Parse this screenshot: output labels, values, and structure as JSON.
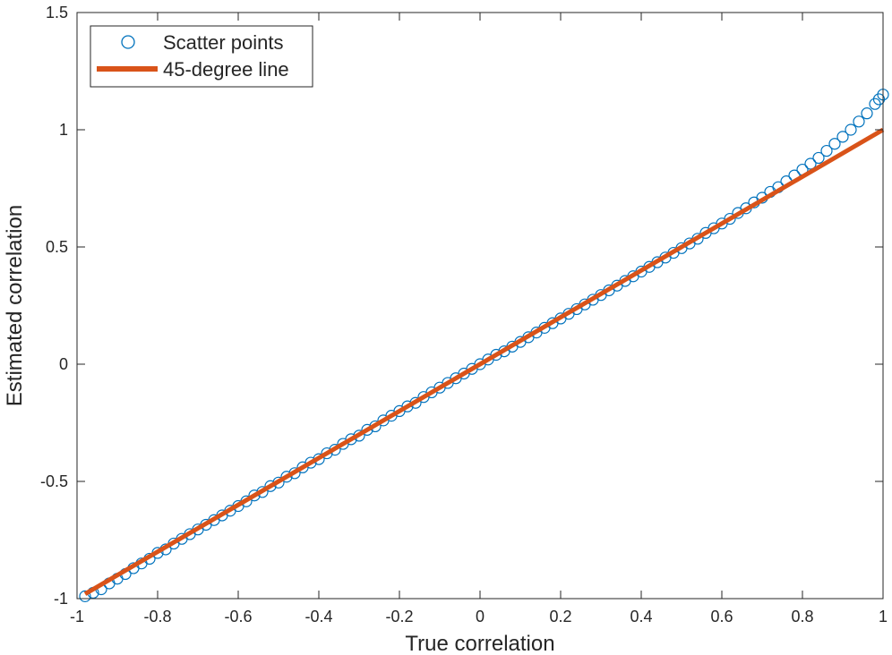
{
  "chart_data": {
    "type": "scatter",
    "xlabel": "True correlation",
    "ylabel": "Estimated correlation",
    "xlim": [
      -1,
      1
    ],
    "ylim": [
      -1,
      1.5
    ],
    "x_ticks": [
      "-1",
      "-0.8",
      "-0.6",
      "-0.4",
      "-0.2",
      "0",
      "0.2",
      "0.4",
      "0.6",
      "0.8",
      "1"
    ],
    "y_ticks": [
      "-1",
      "-0.5",
      "0",
      "0.5",
      "1",
      "1.5"
    ],
    "grid": false,
    "legend_position": "top-left",
    "series": [
      {
        "name": "Scatter points",
        "marker": "circle-open",
        "color": "#0072bd",
        "points": [
          [
            -0.98,
            -0.99
          ],
          [
            -0.96,
            -0.975
          ],
          [
            -0.94,
            -0.96
          ],
          [
            -0.92,
            -0.935
          ],
          [
            -0.9,
            -0.915
          ],
          [
            -0.88,
            -0.895
          ],
          [
            -0.86,
            -0.87
          ],
          [
            -0.84,
            -0.85
          ],
          [
            -0.82,
            -0.83
          ],
          [
            -0.8,
            -0.805
          ],
          [
            -0.78,
            -0.79
          ],
          [
            -0.76,
            -0.765
          ],
          [
            -0.74,
            -0.745
          ],
          [
            -0.72,
            -0.725
          ],
          [
            -0.7,
            -0.705
          ],
          [
            -0.68,
            -0.685
          ],
          [
            -0.66,
            -0.665
          ],
          [
            -0.64,
            -0.645
          ],
          [
            -0.62,
            -0.625
          ],
          [
            -0.6,
            -0.605
          ],
          [
            -0.58,
            -0.585
          ],
          [
            -0.56,
            -0.56
          ],
          [
            -0.54,
            -0.545
          ],
          [
            -0.52,
            -0.52
          ],
          [
            -0.5,
            -0.505
          ],
          [
            -0.48,
            -0.48
          ],
          [
            -0.46,
            -0.465
          ],
          [
            -0.44,
            -0.44
          ],
          [
            -0.42,
            -0.42
          ],
          [
            -0.4,
            -0.405
          ],
          [
            -0.38,
            -0.38
          ],
          [
            -0.36,
            -0.365
          ],
          [
            -0.34,
            -0.34
          ],
          [
            -0.32,
            -0.32
          ],
          [
            -0.3,
            -0.305
          ],
          [
            -0.28,
            -0.28
          ],
          [
            -0.26,
            -0.265
          ],
          [
            -0.24,
            -0.24
          ],
          [
            -0.22,
            -0.22
          ],
          [
            -0.2,
            -0.2
          ],
          [
            -0.18,
            -0.18
          ],
          [
            -0.16,
            -0.165
          ],
          [
            -0.14,
            -0.14
          ],
          [
            -0.12,
            -0.12
          ],
          [
            -0.1,
            -0.1
          ],
          [
            -0.08,
            -0.08
          ],
          [
            -0.06,
            -0.06
          ],
          [
            -0.04,
            -0.04
          ],
          [
            -0.02,
            -0.02
          ],
          [
            0.0,
            0.0
          ],
          [
            0.02,
            0.02
          ],
          [
            0.04,
            0.04
          ],
          [
            0.06,
            0.055
          ],
          [
            0.08,
            0.075
          ],
          [
            0.1,
            0.095
          ],
          [
            0.12,
            0.115
          ],
          [
            0.14,
            0.135
          ],
          [
            0.16,
            0.155
          ],
          [
            0.18,
            0.175
          ],
          [
            0.2,
            0.195
          ],
          [
            0.22,
            0.215
          ],
          [
            0.24,
            0.235
          ],
          [
            0.26,
            0.255
          ],
          [
            0.28,
            0.275
          ],
          [
            0.3,
            0.295
          ],
          [
            0.32,
            0.315
          ],
          [
            0.34,
            0.335
          ],
          [
            0.36,
            0.355
          ],
          [
            0.38,
            0.375
          ],
          [
            0.4,
            0.395
          ],
          [
            0.42,
            0.415
          ],
          [
            0.44,
            0.435
          ],
          [
            0.46,
            0.455
          ],
          [
            0.48,
            0.475
          ],
          [
            0.5,
            0.495
          ],
          [
            0.52,
            0.515
          ],
          [
            0.54,
            0.535
          ],
          [
            0.56,
            0.56
          ],
          [
            0.58,
            0.58
          ],
          [
            0.6,
            0.6
          ],
          [
            0.62,
            0.62
          ],
          [
            0.64,
            0.645
          ],
          [
            0.66,
            0.665
          ],
          [
            0.68,
            0.69
          ],
          [
            0.7,
            0.71
          ],
          [
            0.72,
            0.735
          ],
          [
            0.74,
            0.755
          ],
          [
            0.76,
            0.78
          ],
          [
            0.78,
            0.805
          ],
          [
            0.8,
            0.83
          ],
          [
            0.82,
            0.855
          ],
          [
            0.84,
            0.88
          ],
          [
            0.86,
            0.91
          ],
          [
            0.88,
            0.94
          ],
          [
            0.9,
            0.97
          ],
          [
            0.92,
            1.0
          ],
          [
            0.94,
            1.035
          ],
          [
            0.96,
            1.07
          ],
          [
            0.98,
            1.11
          ],
          [
            0.99,
            1.13
          ],
          [
            1.0,
            1.15
          ]
        ]
      },
      {
        "name": "45-degree line",
        "type": "line",
        "color": "#d95319",
        "x": [
          -0.98,
          1.0
        ],
        "y": [
          -0.98,
          1.0
        ]
      }
    ]
  }
}
